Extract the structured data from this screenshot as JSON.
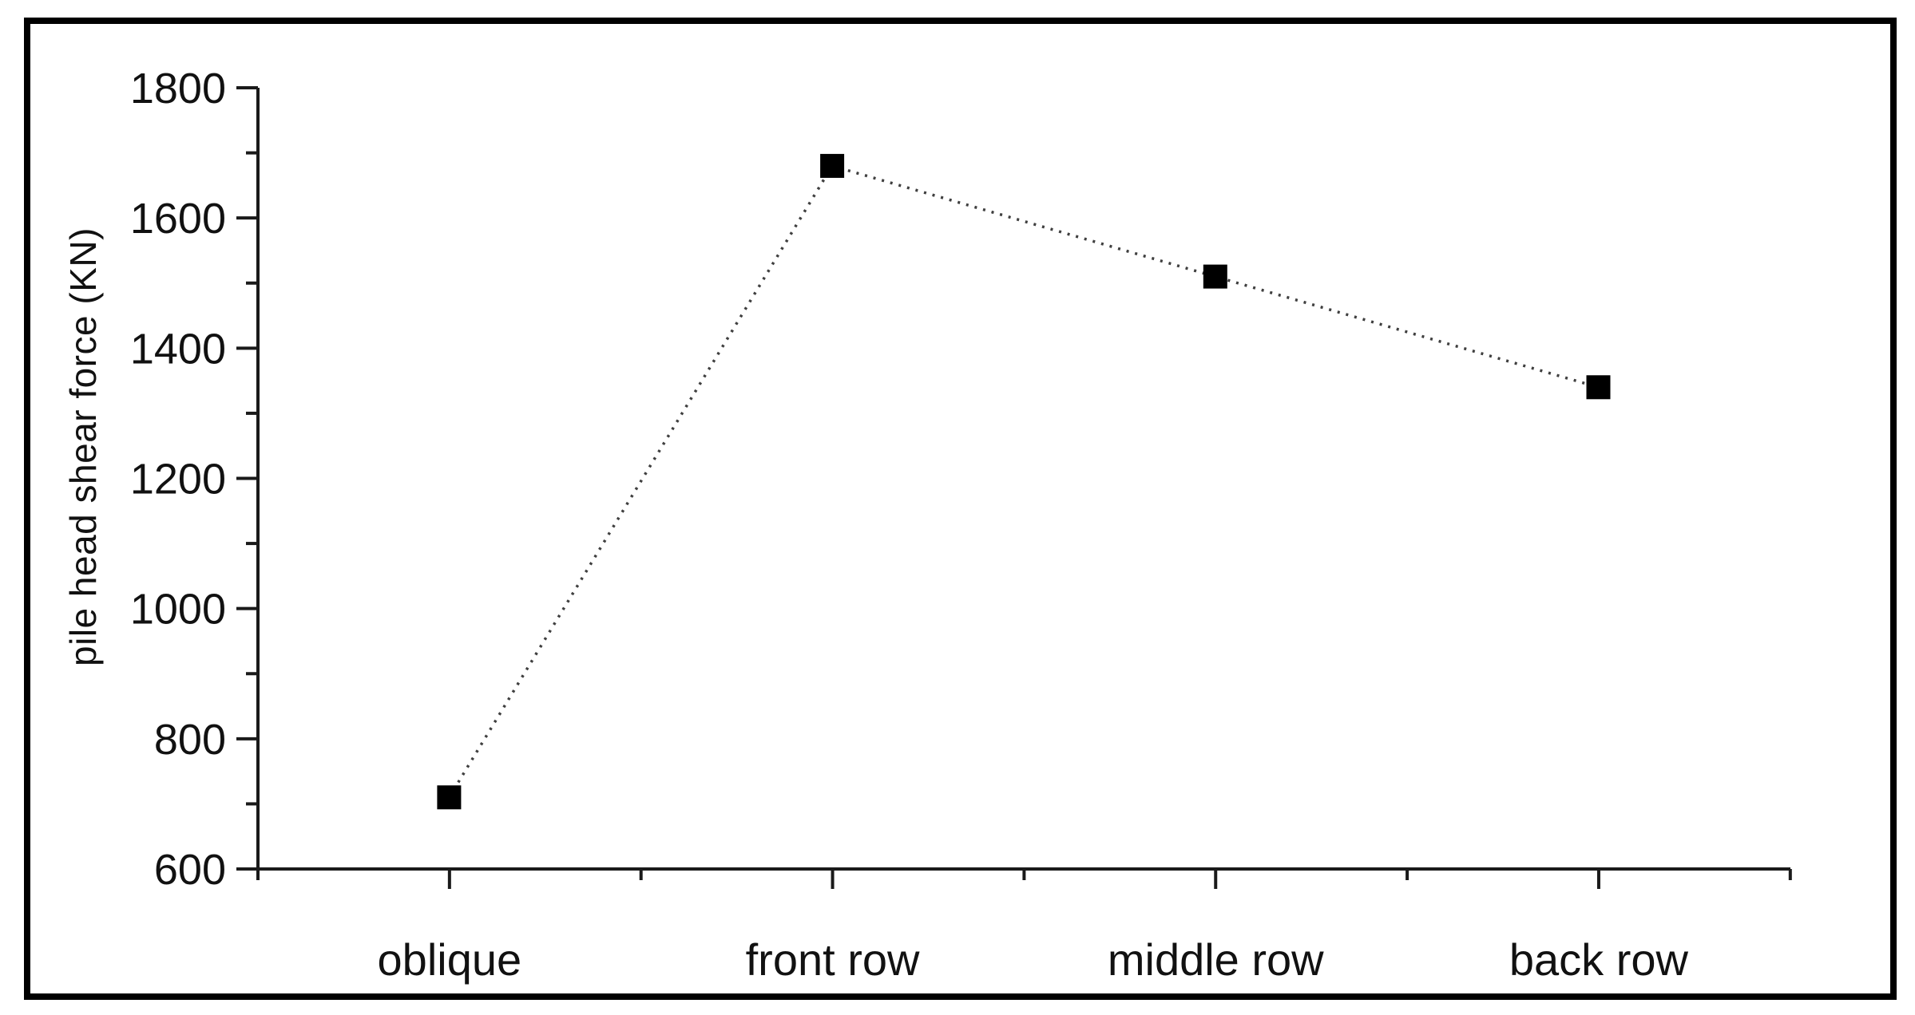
{
  "figure": {
    "background_color": "#ffffff",
    "border_color": "#000000",
    "axis_color": "#1a1a1a",
    "text_color": "#111111"
  },
  "chart_data": {
    "type": "line",
    "title": "",
    "xlabel": "",
    "ylabel": "pile head shear force (KN)",
    "categories": [
      "oblique",
      "front row",
      "middle row",
      "back row"
    ],
    "series": [
      {
        "name": "pile head shear force",
        "values": [
          710,
          1680,
          1510,
          1340
        ],
        "line_style": "dotted",
        "line_color": "#3f3f3f",
        "marker": "filled-square",
        "marker_color": "#000000"
      }
    ],
    "ylim": [
      600,
      1800
    ],
    "ytick_major_step": 200,
    "ytick_minor_step": 100,
    "ytick_labels": [
      "600",
      "800",
      "1000",
      "1200",
      "1400",
      "1600",
      "1800"
    ],
    "grid": false,
    "legend": null
  }
}
